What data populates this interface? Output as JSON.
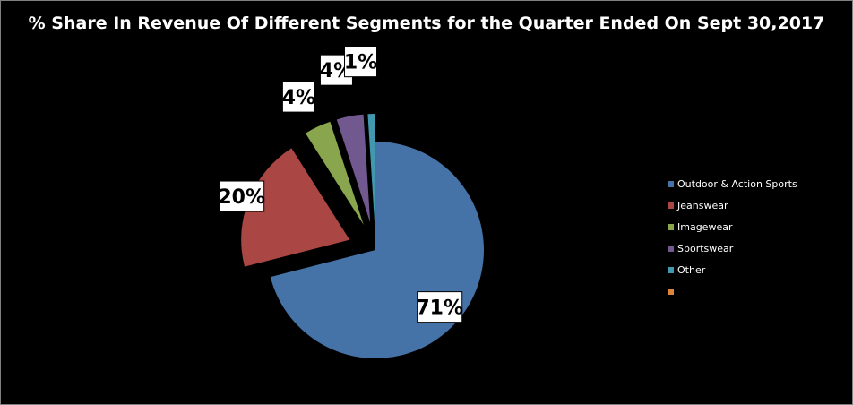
{
  "chart_data": {
    "type": "pie",
    "title": "% Share In Revenue Of Different Segments for the Quarter Ended On Sept 30,2017",
    "categories": [
      "Outdoor & Action Sports",
      "Jeanswear",
      "Imagewear",
      "Sportswear",
      "Other",
      ""
    ],
    "values": [
      71,
      20,
      4,
      4,
      1,
      0
    ],
    "labels": [
      "71%",
      "20%",
      "4%",
      "4%",
      "1%",
      ""
    ],
    "colors": [
      "#4572A7",
      "#AA4643",
      "#89A54E",
      "#71588F",
      "#4198AF",
      "#DB843D"
    ],
    "legend_position": "right",
    "exploded": [
      false,
      true,
      true,
      true,
      true,
      false
    ]
  }
}
